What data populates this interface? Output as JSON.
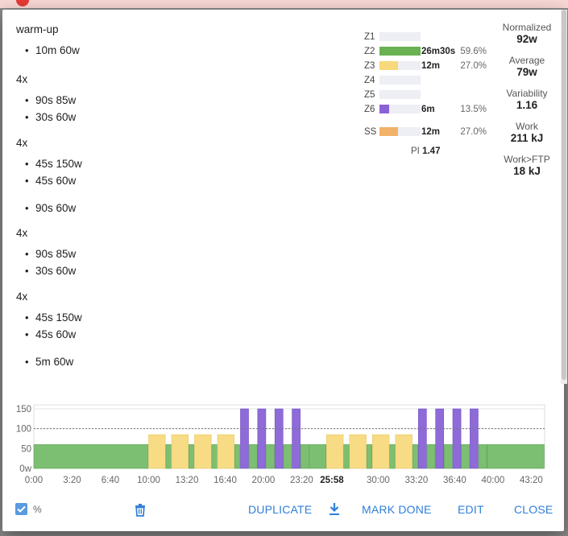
{
  "workout": {
    "blocks": [
      {
        "head": "warm-up",
        "items": [
          "10m 60w"
        ]
      },
      {
        "head": "4x",
        "items": [
          "90s 85w",
          "30s 60w"
        ]
      },
      {
        "head": "4x",
        "items": [
          "45s 150w",
          "45s 60w"
        ]
      },
      {
        "head": "",
        "items": [
          "90s 60w"
        ]
      },
      {
        "head": "4x",
        "items": [
          "90s 85w",
          "30s 60w"
        ]
      },
      {
        "head": "4x",
        "items": [
          "45s 150w",
          "45s 60w"
        ]
      },
      {
        "head": "",
        "items": [
          "5m 60w"
        ]
      }
    ]
  },
  "zones": [
    {
      "label": "Z1",
      "time": "",
      "percent": "",
      "share": 0,
      "color": "#eeeef5"
    },
    {
      "label": "Z2",
      "time": "26m30s",
      "percent": "59.6%",
      "share": 1.0,
      "color": "#6ab152"
    },
    {
      "label": "Z3",
      "time": "12m",
      "percent": "27.0%",
      "share": 0.45,
      "color": "#f7d87a"
    },
    {
      "label": "Z4",
      "time": "",
      "percent": "",
      "share": 0,
      "color": "#eeeef5"
    },
    {
      "label": "Z5",
      "time": "",
      "percent": "",
      "share": 0,
      "color": "#eeeef5"
    },
    {
      "label": "Z6",
      "time": "6m",
      "percent": "13.5%",
      "share": 0.23,
      "color": "#8b62d6"
    },
    {
      "label": "SS",
      "time": "12m",
      "percent": "27.0%",
      "share": 0.45,
      "color": "#f2b26a"
    }
  ],
  "pi": {
    "label": "PI",
    "value": "1.47"
  },
  "stats": [
    {
      "label": "Normalized",
      "value": "92w"
    },
    {
      "label": "Average",
      "value": "79w"
    },
    {
      "label": "Variability",
      "value": "1.16"
    },
    {
      "label": "Work",
      "value": "211 kJ"
    },
    {
      "label": "Work>FTP",
      "value": "18 kJ"
    }
  ],
  "chart_data": {
    "type": "area",
    "y_ticks": [
      0,
      50,
      100,
      150
    ],
    "y_tick_labels": [
      "0w",
      "50",
      "100",
      "150"
    ],
    "x_tick_labels": [
      "0:00",
      "3:20",
      "6:40",
      "10:00",
      "13:20",
      "16:40",
      "20:00",
      "23:20",
      "25:58",
      "30:00",
      "33:20",
      "36:40",
      "40:00",
      "43:20"
    ],
    "x_ticks_sec": [
      0,
      200,
      400,
      600,
      800,
      1000,
      1200,
      1400,
      1558,
      1800,
      2000,
      2200,
      2400,
      2600
    ],
    "highlight_label": "25:58",
    "xlim_sec": [
      0,
      2670
    ],
    "ylim": [
      0,
      160
    ],
    "ftp_line": 100,
    "segments": [
      {
        "start": 0,
        "dur": 600,
        "watts": 60,
        "zone": "z2"
      },
      {
        "start": 600,
        "dur": 90,
        "watts": 85,
        "zone": "z3"
      },
      {
        "start": 690,
        "dur": 30,
        "watts": 60,
        "zone": "z2"
      },
      {
        "start": 720,
        "dur": 90,
        "watts": 85,
        "zone": "z3"
      },
      {
        "start": 810,
        "dur": 30,
        "watts": 60,
        "zone": "z2"
      },
      {
        "start": 840,
        "dur": 90,
        "watts": 85,
        "zone": "z3"
      },
      {
        "start": 930,
        "dur": 30,
        "watts": 60,
        "zone": "z2"
      },
      {
        "start": 960,
        "dur": 90,
        "watts": 85,
        "zone": "z3"
      },
      {
        "start": 1050,
        "dur": 30,
        "watts": 60,
        "zone": "z2"
      },
      {
        "start": 1080,
        "dur": 45,
        "watts": 150,
        "zone": "z6"
      },
      {
        "start": 1125,
        "dur": 45,
        "watts": 60,
        "zone": "z2"
      },
      {
        "start": 1170,
        "dur": 45,
        "watts": 150,
        "zone": "z6"
      },
      {
        "start": 1215,
        "dur": 45,
        "watts": 60,
        "zone": "z2"
      },
      {
        "start": 1260,
        "dur": 45,
        "watts": 150,
        "zone": "z6"
      },
      {
        "start": 1305,
        "dur": 45,
        "watts": 60,
        "zone": "z2"
      },
      {
        "start": 1350,
        "dur": 45,
        "watts": 150,
        "zone": "z6"
      },
      {
        "start": 1395,
        "dur": 45,
        "watts": 60,
        "zone": "z2"
      },
      {
        "start": 1440,
        "dur": 90,
        "watts": 60,
        "zone": "z2"
      },
      {
        "start": 1530,
        "dur": 90,
        "watts": 85,
        "zone": "z3"
      },
      {
        "start": 1620,
        "dur": 30,
        "watts": 60,
        "zone": "z2"
      },
      {
        "start": 1650,
        "dur": 90,
        "watts": 85,
        "zone": "z3"
      },
      {
        "start": 1740,
        "dur": 30,
        "watts": 60,
        "zone": "z2"
      },
      {
        "start": 1770,
        "dur": 90,
        "watts": 85,
        "zone": "z3"
      },
      {
        "start": 1860,
        "dur": 30,
        "watts": 60,
        "zone": "z2"
      },
      {
        "start": 1890,
        "dur": 90,
        "watts": 85,
        "zone": "z3"
      },
      {
        "start": 1980,
        "dur": 30,
        "watts": 60,
        "zone": "z2"
      },
      {
        "start": 2010,
        "dur": 45,
        "watts": 150,
        "zone": "z6"
      },
      {
        "start": 2055,
        "dur": 45,
        "watts": 60,
        "zone": "z2"
      },
      {
        "start": 2100,
        "dur": 45,
        "watts": 150,
        "zone": "z6"
      },
      {
        "start": 2145,
        "dur": 45,
        "watts": 60,
        "zone": "z2"
      },
      {
        "start": 2190,
        "dur": 45,
        "watts": 150,
        "zone": "z6"
      },
      {
        "start": 2235,
        "dur": 45,
        "watts": 60,
        "zone": "z2"
      },
      {
        "start": 2280,
        "dur": 45,
        "watts": 150,
        "zone": "z6"
      },
      {
        "start": 2325,
        "dur": 45,
        "watts": 60,
        "zone": "z2"
      },
      {
        "start": 2370,
        "dur": 300,
        "watts": 60,
        "zone": "z2"
      }
    ],
    "zone_colors": {
      "z2": "#7cbf72",
      "z3": "#f7dc85",
      "z6": "#8e6bd8"
    }
  },
  "footer": {
    "percent_label": "%",
    "percent_checked": true,
    "duplicate_label": "DUPLICATE",
    "mark_done_label": "MARK DONE",
    "edit_label": "EDIT",
    "close_label": "CLOSE"
  }
}
